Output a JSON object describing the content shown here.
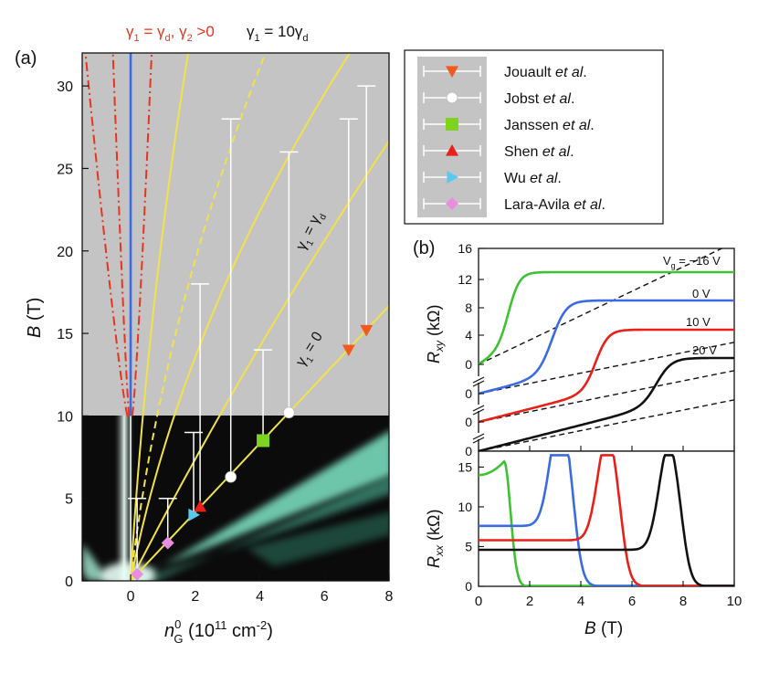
{
  "figure": {
    "panel_a_label": "(a)",
    "panel_b_label": "(b)"
  },
  "chart_data": [
    {
      "panel": "(a)",
      "type": "scatter",
      "xlabel_parts": [
        "n",
        "0",
        "G",
        " (10",
        "11",
        " cm",
        "-2",
        ")"
      ],
      "ylabel": "B (T)",
      "xlim": [
        -1.5,
        8
      ],
      "ylim": [
        0,
        32
      ],
      "xticks": [
        0,
        2,
        4,
        6,
        8
      ],
      "yticks": [
        0,
        5,
        10,
        15,
        20,
        25,
        30
      ],
      "top_labels": {
        "red": "γ1 = γd, γ2 >0",
        "black": "γ1 = 10γd"
      },
      "curve_labels": {
        "upper": "γ1 = γd",
        "lower": "γ1 = 0"
      },
      "colors": {
        "gray_region": "#c4c4c4",
        "yellow": "#f2e24a",
        "red_curve": "#e8341c",
        "blue_line": "#3b6be0"
      },
      "series": [
        {
          "name": "Jouault et al.",
          "marker": "triangle-down",
          "color": "#f05a1e",
          "points": [
            {
              "x": 6.75,
              "y": 14.0,
              "yerr_top": 28
            },
            {
              "x": 7.3,
              "y": 15.2,
              "yerr_top": 30
            }
          ]
        },
        {
          "name": "Jobst et al.",
          "marker": "circle",
          "color": "#ffffff",
          "points": [
            {
              "x": 3.1,
              "y": 6.3,
              "yerr_top": 28
            },
            {
              "x": 4.9,
              "y": 10.2,
              "yerr_top": 26
            }
          ]
        },
        {
          "name": "Janssen et al.",
          "marker": "square",
          "color": "#7ed321",
          "points": [
            {
              "x": 4.1,
              "y": 8.5,
              "yerr_top": 14
            }
          ]
        },
        {
          "name": "Shen et al.",
          "marker": "triangle-up",
          "color": "#e8201a",
          "points": [
            {
              "x": 2.15,
              "y": 4.5,
              "yerr_top": 18
            }
          ]
        },
        {
          "name": "Wu et al.",
          "marker": "triangle-right",
          "color": "#5bc8f0",
          "points": [
            {
              "x": 1.95,
              "y": 4.0,
              "yerr_top": 9
            }
          ]
        },
        {
          "name": "Lara-Avila et al.",
          "marker": "diamond",
          "color": "#e88ee0",
          "points": [
            {
              "x": 0.2,
              "y": 0.4,
              "yerr_top": 5
            },
            {
              "x": 1.15,
              "y": 2.3,
              "yerr_top": 5
            }
          ]
        }
      ]
    },
    {
      "panel": "(b) top",
      "type": "line",
      "ylabel": "Rxy (kΩ)",
      "xlim": [
        0,
        10
      ],
      "yticks": [
        "16",
        "12",
        "8",
        "4",
        "0",
        "0",
        "0",
        "0"
      ],
      "annotations": [
        "Vg = −16 V",
        "0 V",
        "10 V",
        "20 V"
      ],
      "series": [
        {
          "name": "Vg = −16 V",
          "color": "#3ec234",
          "plateau_kOhm": 12.9,
          "step_B": 1.2
        },
        {
          "name": "0 V",
          "color": "#3b6be0",
          "plateau_kOhm": 8.9,
          "step_B": 2.9
        },
        {
          "name": "10 V",
          "color": "#e8201a",
          "plateau_kOhm": 4.9,
          "step_B": 4.6
        },
        {
          "name": "20 V",
          "color": "#111111",
          "step_B": 7.0
        }
      ]
    },
    {
      "panel": "(b) bottom",
      "type": "line",
      "xlabel": "B (T)",
      "ylabel": "Rxx (kΩ)",
      "xlim": [
        0,
        10
      ],
      "ylim": [
        0,
        17
      ],
      "xticks": [
        0,
        2,
        4,
        6,
        8,
        10
      ],
      "yticks": [
        0,
        5,
        10,
        15
      ],
      "series": [
        {
          "name": "Vg = −16 V",
          "color": "#3ec234",
          "peak": {
            "B": 1.0,
            "R": 15.7
          }
        },
        {
          "name": "0 V",
          "color": "#3b6be0",
          "peak": {
            "B": 3.2,
            "R": 14.2
          }
        },
        {
          "name": "10 V",
          "color": "#e8201a",
          "peak": {
            "B": 5.05,
            "R": 13.3
          }
        },
        {
          "name": "20 V",
          "color": "#111111",
          "peak": {
            "B": 7.45,
            "R": 13.2
          }
        }
      ]
    }
  ]
}
